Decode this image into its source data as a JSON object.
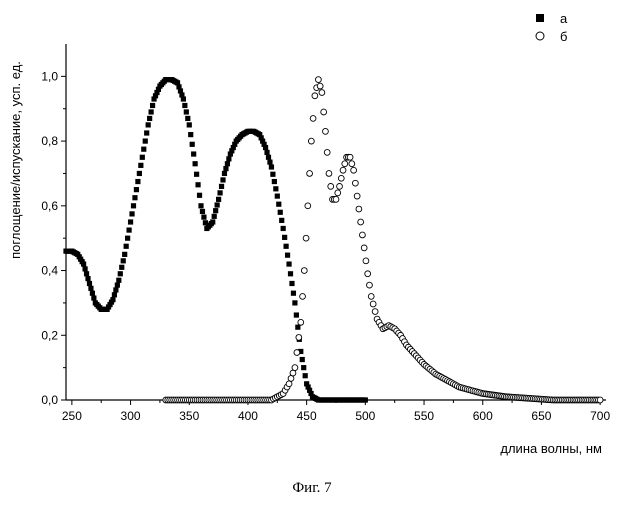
{
  "chart_data": {
    "type": "scatter",
    "title": "",
    "xlabel": "длина волны, нм",
    "ylabel": "поглощение/испускание, усп. ед.",
    "xlim": [
      245,
      705
    ],
    "ylim": [
      0,
      1.1
    ],
    "xticks": [
      250,
      300,
      350,
      400,
      450,
      500,
      550,
      600,
      650,
      700
    ],
    "yticks": [
      0.0,
      0.2,
      0.4,
      0.6,
      0.8,
      1.0
    ],
    "xtick_labels": [
      "250",
      "300",
      "350",
      "400",
      "450",
      "500",
      "550",
      "600",
      "650",
      "700"
    ],
    "ytick_labels": [
      "0,0",
      "0,2",
      "0,4",
      "0,6",
      "0,8",
      "1,0"
    ],
    "grid": false,
    "legend_position": "top-right",
    "series": [
      {
        "name": "а",
        "marker": "filled-square",
        "color": "#000000",
        "x": [
          245,
          250,
          255,
          260,
          265,
          270,
          275,
          280,
          285,
          290,
          295,
          300,
          305,
          310,
          315,
          320,
          325,
          330,
          335,
          340,
          345,
          350,
          355,
          360,
          365,
          370,
          375,
          380,
          385,
          390,
          395,
          400,
          405,
          410,
          415,
          420,
          425,
          430,
          435,
          440,
          445,
          450,
          455,
          460,
          465,
          470,
          475,
          480,
          485,
          490,
          495,
          500
        ],
        "y": [
          0.46,
          0.46,
          0.45,
          0.42,
          0.36,
          0.3,
          0.28,
          0.28,
          0.31,
          0.37,
          0.45,
          0.55,
          0.65,
          0.75,
          0.85,
          0.93,
          0.97,
          0.99,
          0.99,
          0.98,
          0.93,
          0.85,
          0.73,
          0.6,
          0.53,
          0.55,
          0.62,
          0.7,
          0.76,
          0.8,
          0.82,
          0.83,
          0.83,
          0.82,
          0.78,
          0.72,
          0.63,
          0.53,
          0.42,
          0.3,
          0.15,
          0.05,
          0.01,
          0.0,
          0.0,
          0.0,
          0.0,
          0.0,
          0.0,
          0.0,
          0.0,
          0.0
        ]
      },
      {
        "name": "б",
        "marker": "open-circle",
        "color": "#000000",
        "x": [
          330,
          340,
          350,
          360,
          370,
          380,
          390,
          400,
          410,
          420,
          425,
          430,
          435,
          440,
          445,
          448,
          451,
          454,
          457,
          460,
          463,
          466,
          469,
          472,
          475,
          478,
          481,
          484,
          487,
          490,
          493,
          496,
          499,
          502,
          505,
          510,
          515,
          520,
          525,
          530,
          535,
          540,
          550,
          560,
          570,
          580,
          590,
          600,
          620,
          640,
          660,
          680,
          700
        ],
        "y": [
          0.0,
          0.0,
          0.0,
          0.0,
          0.0,
          0.0,
          0.0,
          0.0,
          0.0,
          0.0,
          0.01,
          0.02,
          0.05,
          0.1,
          0.24,
          0.4,
          0.6,
          0.8,
          0.94,
          0.99,
          0.95,
          0.83,
          0.7,
          0.62,
          0.62,
          0.66,
          0.71,
          0.75,
          0.75,
          0.71,
          0.63,
          0.55,
          0.47,
          0.39,
          0.32,
          0.25,
          0.22,
          0.23,
          0.22,
          0.2,
          0.17,
          0.15,
          0.11,
          0.08,
          0.06,
          0.04,
          0.03,
          0.02,
          0.01,
          0.005,
          0.0,
          0.0,
          0.0
        ]
      }
    ]
  },
  "caption": "Фиг. 7"
}
